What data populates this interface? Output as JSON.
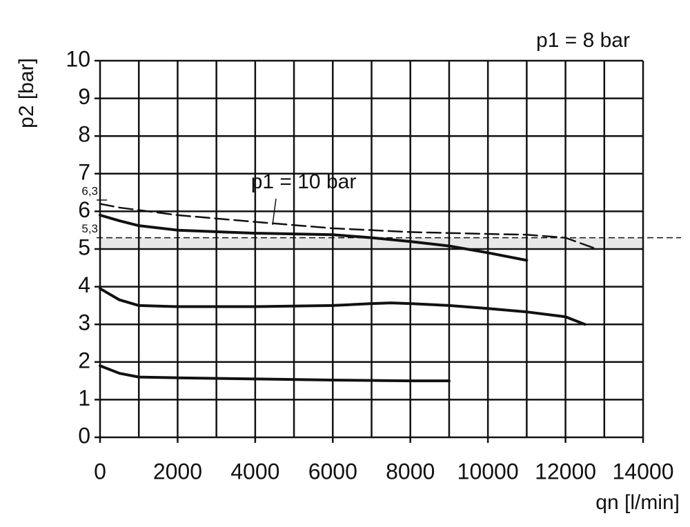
{
  "chart_data": {
    "type": "line",
    "xlabel": "qn [l/min]",
    "ylabel": "p2 [bar]",
    "xlim": [
      0,
      14000
    ],
    "ylim": [
      0,
      10
    ],
    "xticks": [
      0,
      2000,
      4000,
      6000,
      8000,
      10000,
      12000,
      14000
    ],
    "x_minor_ticks": [
      1000,
      3000,
      5000,
      7000,
      9000,
      11000,
      13000
    ],
    "yticks": [
      0,
      1,
      2,
      3,
      4,
      5,
      6,
      7,
      8,
      9,
      10
    ],
    "grid": true,
    "series": [
      {
        "color": "#111111",
        "dashed": false,
        "x": [
          0,
          500,
          1000,
          2000,
          4000,
          6000,
          7000,
          8000,
          9000,
          10000,
          11000
        ],
        "values": [
          5.9,
          5.75,
          5.62,
          5.5,
          5.42,
          5.38,
          5.3,
          5.2,
          5.08,
          4.9,
          4.7
        ]
      },
      {
        "color": "#111111",
        "dashed": false,
        "x": [
          0,
          500,
          1000,
          2000,
          4000,
          6000,
          7000,
          7500,
          8000,
          9000,
          10000,
          11000,
          12000,
          12500
        ],
        "values": [
          3.95,
          3.65,
          3.5,
          3.47,
          3.47,
          3.5,
          3.55,
          3.57,
          3.55,
          3.5,
          3.42,
          3.33,
          3.2,
          3.0
        ]
      },
      {
        "color": "#111111",
        "dashed": false,
        "x": [
          0,
          500,
          1000,
          2000,
          4000,
          6000,
          8000,
          9000
        ],
        "values": [
          1.9,
          1.7,
          1.6,
          1.58,
          1.55,
          1.52,
          1.5,
          1.5
        ]
      },
      {
        "color": "#111111",
        "dashed": true,
        "x": [
          0,
          500,
          2000,
          4000,
          6000,
          8000,
          10000,
          11000,
          12000,
          12800
        ],
        "values": [
          6.2,
          6.1,
          5.9,
          5.72,
          5.55,
          5.45,
          5.4,
          5.38,
          5.3,
          5.0
        ]
      }
    ],
    "reference_lines": [
      {
        "value": 6.3,
        "label": "6,3",
        "dashed": false
      },
      {
        "value": 5.3,
        "label": "5,3",
        "dashed": true
      }
    ],
    "annotations": [
      "p1 = 10 bar",
      "p1 = 8 bar"
    ]
  }
}
